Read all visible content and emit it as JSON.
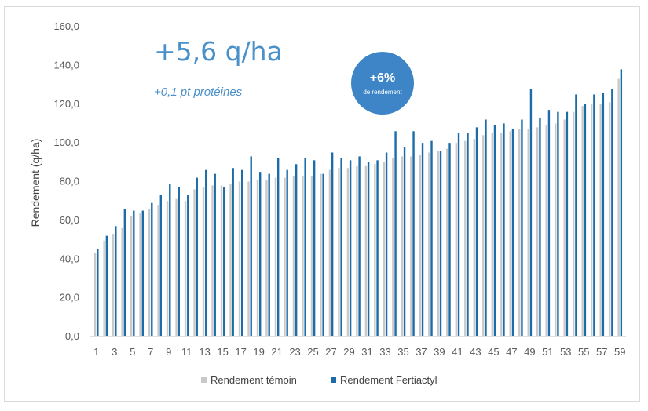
{
  "colors": {
    "temoin": "#c9c9c9",
    "fertiactyl": "#1b6ca8",
    "badge": "#3d85c6",
    "headline": "#4a90c9",
    "grid": "#e6e6e6"
  },
  "annotations": {
    "headline": "+5,6 q/ha",
    "subline": "+0,1 pt protéines",
    "badge_value": "+6%",
    "badge_label": "de rendement"
  },
  "chart_data": {
    "type": "bar",
    "xlabel": "",
    "ylabel": "Rendement (q/ha)",
    "ylim": [
      0,
      160
    ],
    "yticks": [
      "0,0",
      "20,0",
      "40,0",
      "60,0",
      "80,0",
      "100,0",
      "120,0",
      "140,0",
      "160,0"
    ],
    "grid": false,
    "legend_position": "bottom",
    "categories": [
      1,
      2,
      3,
      4,
      5,
      6,
      7,
      8,
      9,
      10,
      11,
      12,
      13,
      14,
      15,
      16,
      17,
      18,
      19,
      20,
      21,
      22,
      23,
      24,
      25,
      26,
      27,
      28,
      29,
      30,
      31,
      32,
      33,
      34,
      35,
      36,
      37,
      38,
      39,
      40,
      41,
      42,
      43,
      44,
      45,
      46,
      47,
      48,
      49,
      50,
      51,
      52,
      53,
      54,
      55,
      56,
      57,
      58,
      59
    ],
    "xtick_labels": [
      "1",
      "3",
      "5",
      "7",
      "9",
      "11",
      "13",
      "15",
      "17",
      "19",
      "21",
      "23",
      "25",
      "27",
      "29",
      "31",
      "33",
      "35",
      "37",
      "39",
      "41",
      "43",
      "45",
      "47",
      "49",
      "51",
      "53",
      "55",
      "57",
      "59"
    ],
    "series": [
      {
        "name": "Rendement témoin",
        "values": [
          43,
          49.5,
          53,
          56,
          62,
          64,
          66,
          68,
          70,
          71,
          70,
          76,
          77,
          78,
          78,
          79,
          80,
          80,
          81,
          81,
          82,
          82,
          83,
          83,
          83,
          84,
          86,
          87,
          87,
          88,
          88,
          89,
          90,
          92,
          93,
          93,
          94,
          95,
          96,
          97,
          100,
          101,
          102,
          104,
          105,
          105,
          106,
          107,
          107,
          108,
          109,
          110,
          112,
          116,
          119,
          120,
          120,
          121,
          133
        ]
      },
      {
        "name": "Rendement Fertiactyl",
        "values": [
          45,
          52,
          57,
          66,
          65,
          65,
          69,
          73,
          79,
          77,
          73,
          82,
          86,
          84,
          77,
          87,
          86,
          93,
          85,
          84,
          92,
          86,
          89,
          92,
          91,
          84,
          95,
          92,
          91,
          93,
          90,
          91,
          95,
          106,
          98,
          106,
          100,
          101,
          96,
          100,
          105,
          105,
          108,
          112,
          109,
          110,
          107,
          112,
          128,
          113,
          117,
          116,
          116,
          125,
          120,
          125,
          126,
          128,
          138
        ]
      }
    ]
  }
}
